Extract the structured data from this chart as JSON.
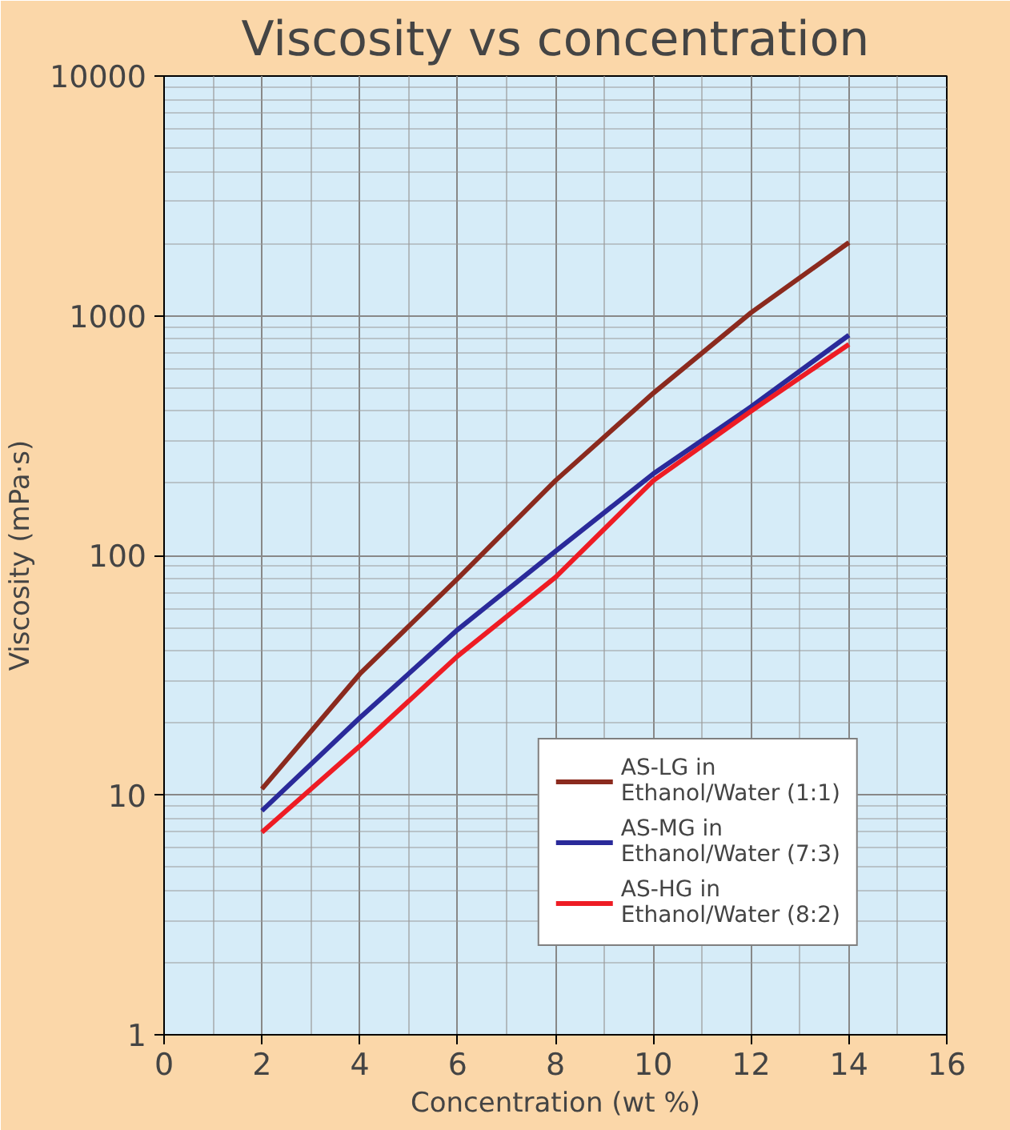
{
  "chart_data": {
    "type": "line",
    "title": "Viscosity vs concentration",
    "xlabel": "Concentration (wt %)",
    "ylabel": "Viscosity (mPa·s)",
    "x": [
      2,
      4,
      6,
      8,
      10,
      12,
      14
    ],
    "series": [
      {
        "name": "AS-LG in Ethanol/Water (1:1)",
        "color": "#8b2a1e",
        "values": [
          10.6,
          32,
          80,
          205,
          475,
          1030,
          2020
        ]
      },
      {
        "name": "AS-MG in Ethanol/Water (7:3)",
        "color": "#2a2a9a",
        "values": [
          8.6,
          21,
          49,
          104,
          219,
          417,
          830
        ]
      },
      {
        "name": "AS-HG in Ethanol/Water (8:2)",
        "color": "#ee1c24",
        "values": [
          7.0,
          16,
          38,
          81,
          205,
          400,
          760
        ]
      }
    ],
    "xlim": [
      0,
      16
    ],
    "xticks": [
      0,
      2,
      4,
      6,
      8,
      10,
      12,
      14,
      16
    ],
    "ylim": [
      1,
      10000
    ],
    "yticks": [
      1,
      10,
      100,
      1000,
      10000
    ],
    "log": "y",
    "grid": true,
    "legend": "bottom right",
    "marker": "none",
    "line_style": "solid"
  }
}
